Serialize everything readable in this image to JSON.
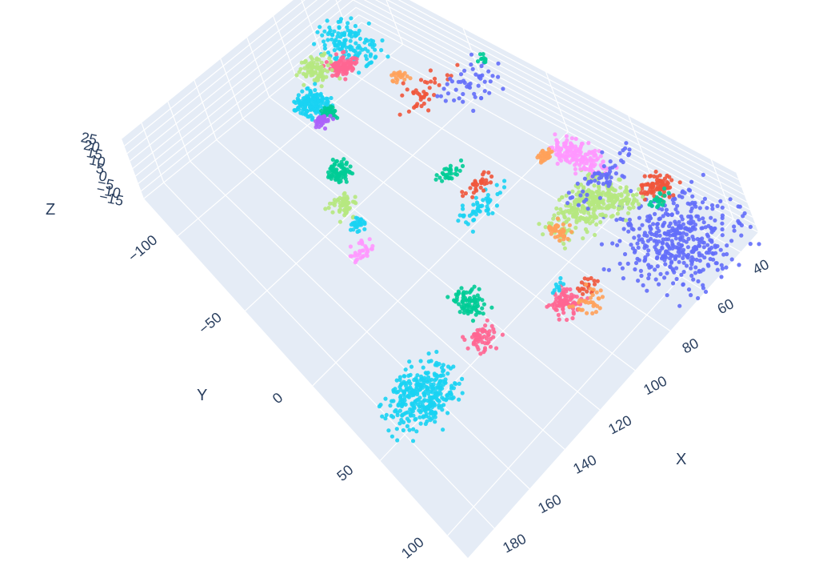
{
  "chart_data": {
    "type": "scatter",
    "title": "",
    "xlabel": "X",
    "ylabel": "Y",
    "zlabel": "Z",
    "xlim": [
      30,
      195
    ],
    "ylim": [
      -125,
      115
    ],
    "zlim": [
      -15,
      25
    ],
    "grid": true,
    "legend": "none",
    "x_ticks": [
      "40",
      "60",
      "80",
      "100",
      "120",
      "140",
      "160",
      "180"
    ],
    "y_ticks": [
      "−100",
      "−50",
      "0",
      "50",
      "100"
    ],
    "z_ticks": [
      "25",
      "20",
      "15",
      "10",
      "5",
      "0",
      "−5",
      "−10",
      "−15"
    ],
    "colors": [
      "#636efa",
      "#ef553b",
      "#00cc96",
      "#ab63fa",
      "#ffa15a",
      "#19d3f3",
      "#ff6692",
      "#b6e880",
      "#ff97ff",
      "#fecb52"
    ],
    "clusters": [
      {
        "color": "#636efa",
        "x": 55,
        "y": 95,
        "z": 0,
        "spread": [
          10,
          14
        ],
        "count": 420
      },
      {
        "color": "#ef553b",
        "x": 40,
        "y": 72,
        "z": 2,
        "spread": [
          3,
          4
        ],
        "count": 80
      },
      {
        "color": "#00cc96",
        "x": 44,
        "y": 74,
        "z": 0,
        "spread": [
          2,
          2
        ],
        "count": 20
      },
      {
        "color": "#b6e880",
        "x": 62,
        "y": 48,
        "z": 0,
        "spread": [
          8,
          6
        ],
        "count": 260
      },
      {
        "color": "#b6e880",
        "x": 52,
        "y": 58,
        "z": 0,
        "spread": [
          3,
          6
        ],
        "count": 60
      },
      {
        "color": "#ff6692",
        "x": 100,
        "y": 73,
        "z": 0,
        "spread": [
          3,
          4
        ],
        "count": 80
      },
      {
        "color": "#ef553b",
        "x": 90,
        "y": 78,
        "z": 0,
        "spread": [
          2,
          2
        ],
        "count": 20
      },
      {
        "color": "#19d3f3",
        "x": 168,
        "y": 54,
        "z": 0,
        "spread": [
          8,
          7
        ],
        "count": 320
      },
      {
        "color": "#00cc96",
        "x": 125,
        "y": 39,
        "z": 0,
        "spread": [
          3,
          5
        ],
        "count": 80
      },
      {
        "color": "#ff6692",
        "x": 132,
        "y": 56,
        "z": 0,
        "spread": [
          3,
          3
        ],
        "count": 60
      },
      {
        "color": "#ffa15a",
        "x": 94,
        "y": 83,
        "z": 0,
        "spread": [
          3,
          4
        ],
        "count": 30
      },
      {
        "color": "#19d3f3",
        "x": 96,
        "y": 66,
        "z": 0,
        "spread": [
          2,
          2
        ],
        "count": 10
      },
      {
        "color": "#19d3f3",
        "x": 55,
        "y": -108,
        "z": 0,
        "spread": [
          6,
          8
        ],
        "count": 140
      },
      {
        "color": "#ff6692",
        "x": 68,
        "y": -100,
        "z": 0,
        "spread": [
          4,
          3
        ],
        "count": 90
      },
      {
        "color": "#b6e880",
        "x": 78,
        "y": -108,
        "z": 0,
        "spread": [
          4,
          4
        ],
        "count": 90
      },
      {
        "color": "#19d3f3",
        "x": 96,
        "y": -95,
        "z": 0,
        "spread": [
          4,
          4
        ],
        "count": 150
      },
      {
        "color": "#00cc96",
        "x": 94,
        "y": -85,
        "z": 0,
        "spread": [
          2,
          2
        ],
        "count": 40
      },
      {
        "color": "#ab63fa",
        "x": 100,
        "y": -85,
        "z": 0,
        "spread": [
          2,
          2
        ],
        "count": 40
      },
      {
        "color": "#00cc96",
        "x": 116,
        "y": -59,
        "z": 0,
        "spread": [
          3,
          3
        ],
        "count": 80
      },
      {
        "color": "#b6e880",
        "x": 128,
        "y": -44,
        "z": 0,
        "spread": [
          3,
          3
        ],
        "count": 60
      },
      {
        "color": "#19d3f3",
        "x": 130,
        "y": -32,
        "z": 0,
        "spread": [
          2,
          2
        ],
        "count": 30
      },
      {
        "color": "#ff97ff",
        "x": 140,
        "y": -20,
        "z": 0,
        "spread": [
          3,
          2
        ],
        "count": 30
      },
      {
        "color": "#ff97ff",
        "x": 46,
        "y": 27,
        "z": 2,
        "spread": [
          3,
          8
        ],
        "count": 160
      },
      {
        "color": "#ffa15a",
        "x": 53,
        "y": 12,
        "z": 0,
        "spread": [
          2,
          2
        ],
        "count": 30
      },
      {
        "color": "#ffa15a",
        "x": 78,
        "y": 46,
        "z": 0,
        "spread": [
          2,
          3
        ],
        "count": 40
      },
      {
        "color": "#636efa",
        "x": 48,
        "y": 44,
        "z": 0,
        "spread": [
          8,
          4
        ],
        "count": 60
      },
      {
        "color": "#19d3f3",
        "x": 88,
        "y": 8,
        "z": 0,
        "spread": [
          6,
          3
        ],
        "count": 50
      },
      {
        "color": "#ef553b",
        "x": 80,
        "y": -2,
        "z": 0,
        "spread": [
          4,
          2
        ],
        "count": 30
      },
      {
        "color": "#00cc96",
        "x": 84,
        "y": -18,
        "z": 0,
        "spread": [
          3,
          2
        ],
        "count": 30
      },
      {
        "color": "#ef553b",
        "x": 56,
        "y": -55,
        "z": 5,
        "spread": [
          8,
          4
        ],
        "count": 40
      },
      {
        "color": "#636efa",
        "x": 40,
        "y": -40,
        "z": 5,
        "spread": [
          8,
          6
        ],
        "count": 50
      },
      {
        "color": "#ffa15a",
        "x": 60,
        "y": -70,
        "z": 5,
        "spread": [
          3,
          2
        ],
        "count": 20
      },
      {
        "color": "#00cc96",
        "x": 34,
        "y": -38,
        "z": 15,
        "spread": [
          1,
          1
        ],
        "count": 10
      }
    ]
  }
}
